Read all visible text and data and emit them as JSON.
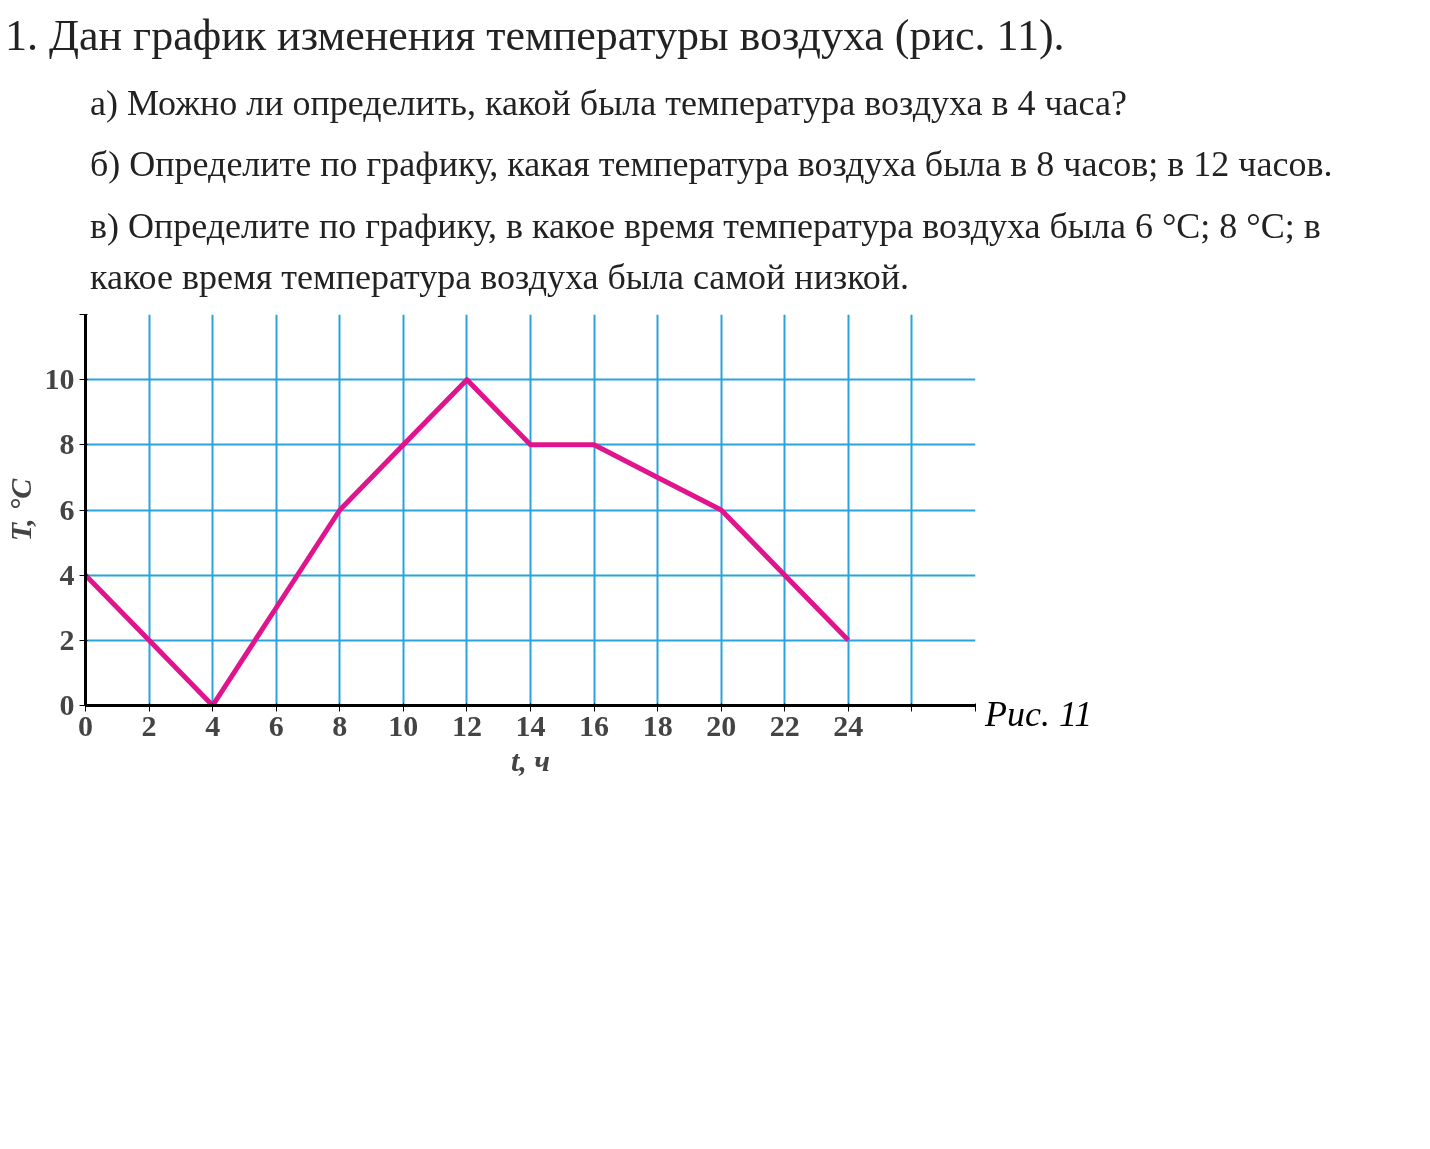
{
  "chart_data": {
    "type": "line",
    "title": "1. Дан график изменения температуры воздуха (рис. 11).",
    "annotations": [
      "а) Можно ли определить, какой была температура воздуха в 4 часа?",
      "б) Определите по графику, какая температура воздуха была в 8 часов; в 12 часов.",
      "в) Определите по графику, в какое время температура воздуха была 6 °C; 8 °C; в какое время температура воздуха была самой низкой.",
      "Рис. 11"
    ],
    "xlabel": "t, ч",
    "ylabel": "T, °C",
    "x": [
      0,
      2,
      4,
      6,
      8,
      10,
      12,
      14,
      16,
      18,
      20,
      22,
      24
    ],
    "series": [
      {
        "color": "#e0148c",
        "values": [
          4,
          2,
          0,
          3,
          6,
          8,
          10,
          8,
          8,
          7,
          6,
          4,
          2
        ]
      }
    ],
    "xlim": [
      0,
      28
    ],
    "ylim": [
      0,
      12
    ],
    "xticks": [
      0,
      2,
      4,
      6,
      8,
      10,
      12,
      14,
      16,
      18,
      20,
      22,
      24,
      {
        "value": 26,
        "label": null
      },
      {
        "value": 28,
        "label": null
      }
    ],
    "yticks": [
      0,
      2,
      4,
      6,
      8,
      10,
      {
        "value": 12,
        "label": null
      }
    ],
    "grid": true,
    "marker": "none",
    "line_style": "solid"
  }
}
